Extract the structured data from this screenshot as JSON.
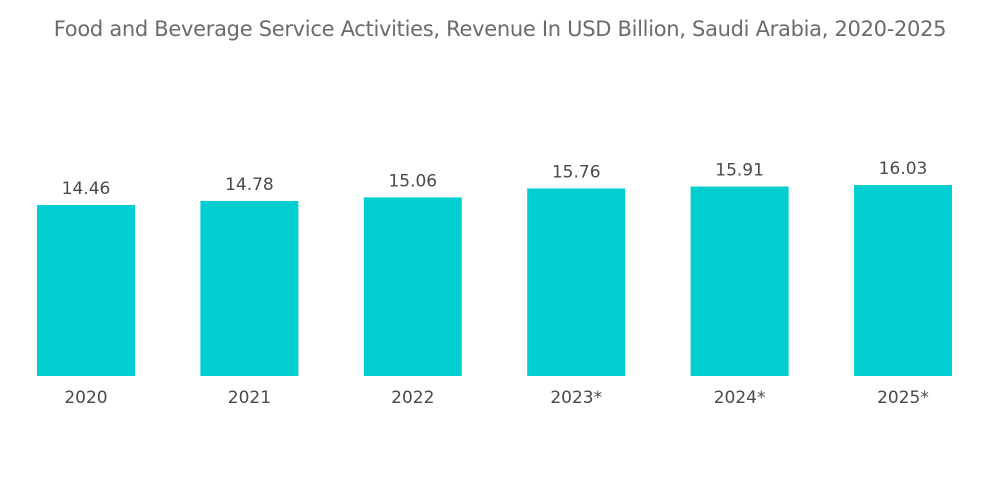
{
  "chart_data": {
    "type": "bar",
    "title": "Food and Beverage Service Activities, Revenue In USD Billion, Saudi Arabia, 2020-2025",
    "categories": [
      "2020",
      "2021",
      "2022",
      "2023*",
      "2024*",
      "2025*"
    ],
    "values": [
      14.46,
      14.78,
      15.06,
      15.76,
      15.91,
      16.03
    ],
    "value_labels": [
      "14.46",
      "14.78",
      "15.06",
      "15.76",
      "15.91",
      "16.03"
    ],
    "xlabel": "",
    "ylabel": "",
    "grid": false,
    "legend": "none",
    "bar_color": "#00CED1"
  }
}
